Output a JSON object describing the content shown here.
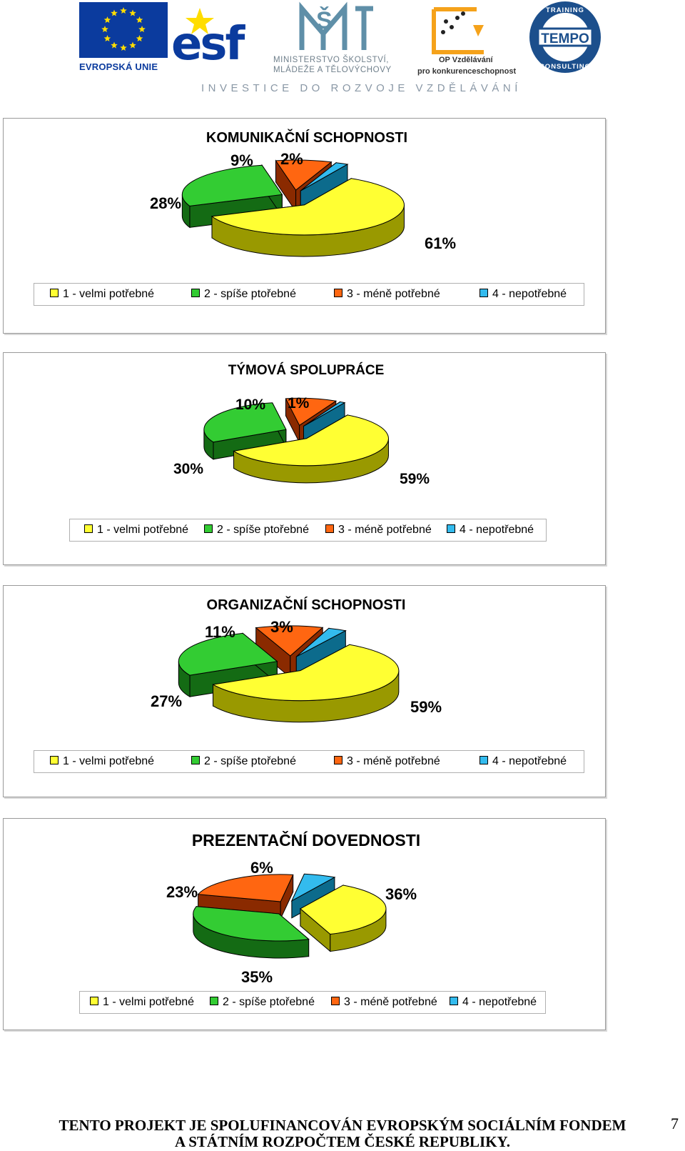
{
  "header": {
    "eu_caption": "EVROPSKÁ UNIE",
    "esf_text": "esf",
    "ministry_line1": "MINISTERSTVO ŠKOLSTVÍ,",
    "ministry_line2": "MLÁDEŽE A TĚLOVÝCHOVY",
    "op_line1": "OP Vzdělávání",
    "op_line2": "pro konkurenceschopnost",
    "tempo_top": "TRAINING",
    "tempo_name": "TEMPO",
    "tempo_bottom": "CONSULTING",
    "tagline": "INVESTICE DO ROZVOJE VZDĚLÁVÁNÍ"
  },
  "colors": {
    "yellow": "#ffff33",
    "green": "#33cc33",
    "orange": "#ff6611",
    "cyan": "#33bbee",
    "eu_blue": "#0b3b9e",
    "eu_stars": "#ffdd00"
  },
  "legend": [
    {
      "label": "1 - velmi potřebné",
      "color": "#ffff33"
    },
    {
      "label": "2 - spíše ptořebné",
      "color": "#33cc33"
    },
    {
      "label": "3 - méně potřebné",
      "color": "#ff6611"
    },
    {
      "label": "4 - nepotřebné",
      "color": "#33bbee"
    }
  ],
  "chart_data": [
    {
      "type": "pie",
      "title": "KOMUNIKAČNÍ SCHOPNOSTI",
      "categories": [
        "1 - velmi potřebné",
        "2 - spíše ptořebné",
        "3 - méně potřebné",
        "4 - nepotřebné"
      ],
      "values": [
        61,
        28,
        9,
        2
      ],
      "labels": [
        "61%",
        "28%",
        "9%",
        "2%"
      ],
      "style": "3d-exploded",
      "legend_position": "bottom"
    },
    {
      "type": "pie",
      "title": "TÝMOVÁ SPOLUPRÁCE",
      "categories": [
        "1 - velmi potřebné",
        "2 - spíše ptořebné",
        "3 - méně potřebné",
        "4 - nepotřebné"
      ],
      "values": [
        59,
        30,
        10,
        1
      ],
      "labels": [
        "59%",
        "30%",
        "10%",
        "1%"
      ],
      "style": "3d-exploded",
      "legend_position": "bottom"
    },
    {
      "type": "pie",
      "title": "ORGANIZAČNÍ SCHOPNOSTI",
      "categories": [
        "1 - velmi potřebné",
        "2 - spíše ptořebné",
        "3 - méně potřebné",
        "4 - nepotřebné"
      ],
      "values": [
        59,
        27,
        11,
        3
      ],
      "labels": [
        "59%",
        "27%",
        "11%",
        "3%"
      ],
      "style": "3d-exploded",
      "legend_position": "bottom"
    },
    {
      "type": "pie",
      "title": "PREZENTAČNÍ DOVEDNOSTI",
      "categories": [
        "1 - velmi potřebné",
        "2 - spíše ptořebné",
        "3 - méně potřebné",
        "4 - nepotřebné"
      ],
      "values": [
        36,
        35,
        23,
        6
      ],
      "labels": [
        "36%",
        "35%",
        "23%",
        "6%"
      ],
      "style": "3d-exploded",
      "legend_position": "bottom"
    }
  ],
  "footer": {
    "line1": "TENTO PROJEKT JE SPOLUFINANCOVÁN EVROPSKÝM SOCIÁLNÍM FONDEM",
    "line2": "A STÁTNÍM ROZPOČTEM ČESKÉ REPUBLIKY.",
    "page_number": "7"
  }
}
